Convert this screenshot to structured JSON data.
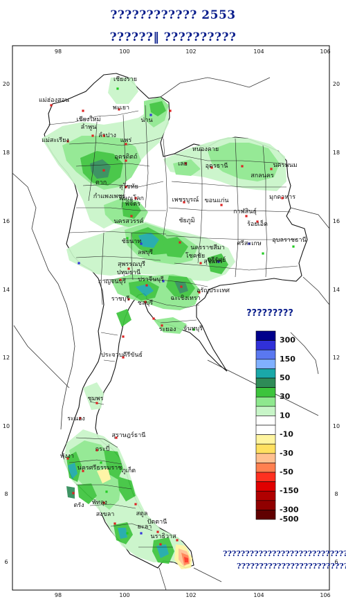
{
  "header": {
    "title_line1": "????????????  2553",
    "title_line2": "??????‖   ??????????"
  },
  "axes": {
    "lon_ticks": [
      "98",
      "100",
      "102",
      "104",
      "106"
    ],
    "lat_ticks": [
      "20",
      "18",
      "16",
      "14",
      "12",
      "10",
      "8",
      "6"
    ]
  },
  "legend": {
    "title": "?????????",
    "bins": [
      {
        "color": "#00008b",
        "label": "300"
      },
      {
        "color": "#3030d8",
        "label": ""
      },
      {
        "color": "#5a78f0",
        "label": "150"
      },
      {
        "color": "#80b0ff",
        "label": ""
      },
      {
        "color": "#1aa8a8",
        "label": "50"
      },
      {
        "color": "#2e8b57",
        "label": ""
      },
      {
        "color": "#3cc43c",
        "label": "30"
      },
      {
        "color": "#8ee88e",
        "label": ""
      },
      {
        "color": "#c8f5c8",
        "label": "10"
      },
      {
        "color": "#ffffff",
        "label": ""
      },
      {
        "color": "#ffffff",
        "label": "-10"
      },
      {
        "color": "#fff5a0",
        "label": ""
      },
      {
        "color": "#ffe060",
        "label": "-30"
      },
      {
        "color": "#ffc090",
        "label": ""
      },
      {
        "color": "#ff8050",
        "label": "-50"
      },
      {
        "color": "#ff3020",
        "label": ""
      },
      {
        "color": "#e00000",
        "label": "-150"
      },
      {
        "color": "#b00000",
        "label": ""
      },
      {
        "color": "#900000",
        "label": "-300"
      },
      {
        "color": "#600000",
        "label": "-500"
      }
    ]
  },
  "footnote": {
    "line1": "??????????????????????????????",
    "line2": "?????????????????????????"
  },
  "provinces": [
    "เชียงราย",
    "แม่ฮ่องสอน",
    "เชียงใหม่",
    "พะเยา",
    "น่าน",
    "ลำพูน",
    "ลำปาง",
    "แพร่",
    "แม่สะเรียง",
    "อุตรดิตถ์",
    "ตาก",
    "สุโขทัย",
    "พิษณุโลก",
    "กำแพงเพชร",
    "พิจิตร",
    "หนองคาย",
    "เลย",
    "อุดรธานี",
    "สกลนคร",
    "นครพนม",
    "มุกดาหาร",
    "เพชรบูรณ์",
    "ขอนแก่น",
    "กาฬสินธุ์",
    "ร้อยเอ็ด",
    "นครสวรรค์",
    "ชัยภูมิ",
    "อุบลราชธานี",
    "สุรินทร์",
    "ศรีสะเกษ",
    "ชัยนาท",
    "ลพบุรี",
    "นครราชสีมา",
    "โชคชัย",
    "บุรีรัมย์",
    "สุพรรณบุรี",
    "กาญจนบุรี",
    "ปทุมธานี",
    "ปราจีนบุรี",
    "อรัญประเทศ",
    "ราชบุรี",
    "ฉะเชิงเทรา",
    "ชลบุรี",
    "ระยอง",
    "จันทบุรี",
    "ประจวบคีรีขันธ์",
    "ชุมพร",
    "ระนอง",
    "สุราษฎร์ธานี",
    "กระบี่",
    "พังงา",
    "นครศรีธรรมราช",
    "ภูเก็ต",
    "ตรัง",
    "พัทลุง",
    "สงขลา",
    "สตูล",
    "ปัตตานี",
    "ยะลา",
    "นราธิวาส"
  ]
}
